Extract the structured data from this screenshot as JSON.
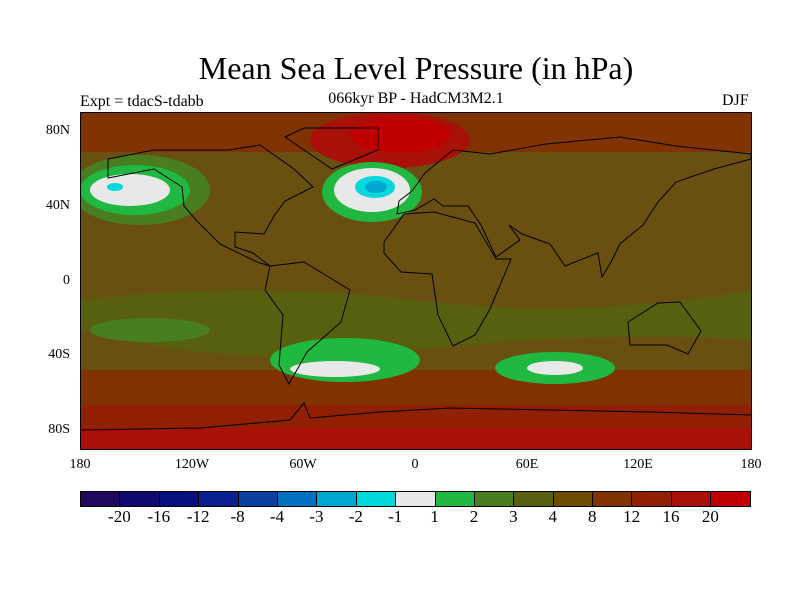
{
  "title": "Mean Sea Level Pressure (in hPa)",
  "subtitle": "066kyr BP - HadCM3M2.1",
  "experiment": "Expt = tdacS-tdabb",
  "season": "DJF",
  "lat_labels": [
    "80N",
    "40N",
    "0",
    "40S",
    "80S"
  ],
  "lon_labels": [
    "180",
    "120W",
    "60W",
    "0",
    "60E",
    "120E",
    "180"
  ],
  "colorbar": {
    "colors": [
      "#200a60",
      "#10086e",
      "#081080",
      "#0a2090",
      "#0a40a0",
      "#0070c0",
      "#00a8d0",
      "#00d8dc",
      "#e8e8e8",
      "#20b840",
      "#487e20",
      "#586010",
      "#6e4c00",
      "#803200",
      "#902000",
      "#a81008",
      "#c00000"
    ],
    "labels": [
      "-20",
      "-16",
      "-12",
      "-8",
      "-4",
      "-3",
      "-2",
      "-1",
      "1",
      "2",
      "3",
      "4",
      "8",
      "12",
      "16",
      "20"
    ]
  }
}
